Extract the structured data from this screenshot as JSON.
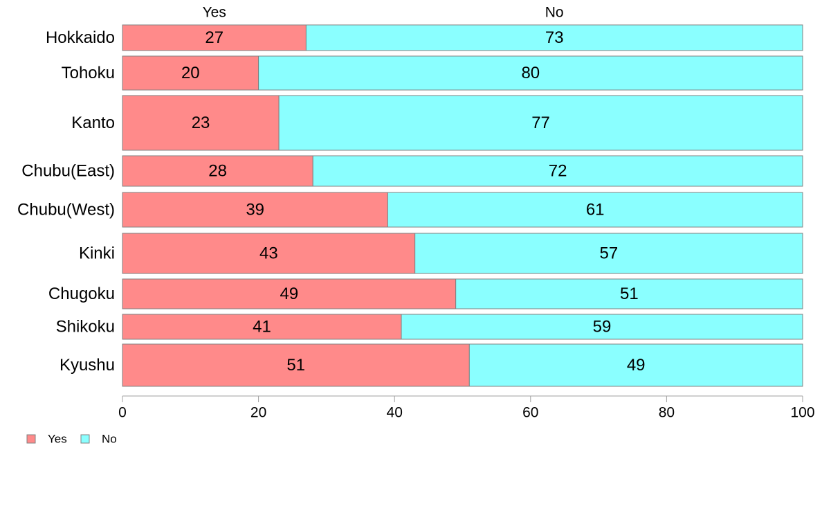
{
  "chart_data": {
    "type": "bar",
    "orientation": "horizontal",
    "stacked": true,
    "categories": [
      "Hokkaido",
      "Tohoku",
      "Kanto",
      "Chubu(East)",
      "Chubu(West)",
      "Kinki",
      "Chugoku",
      "Shikoku",
      "Kyushu"
    ],
    "series": [
      {
        "name": "Yes",
        "values": [
          27,
          20,
          23,
          28,
          39,
          43,
          49,
          41,
          51
        ],
        "color": "#ff8a8a"
      },
      {
        "name": "No",
        "values": [
          73,
          80,
          77,
          72,
          61,
          57,
          51,
          59,
          49
        ],
        "color": "#8affff"
      }
    ],
    "bar_value_labels": [
      [
        "27",
        "73"
      ],
      [
        "20",
        "80"
      ],
      [
        "23",
        "77"
      ],
      [
        "28",
        "72"
      ],
      [
        "39",
        "61"
      ],
      [
        "43",
        "57"
      ],
      [
        "49",
        "51"
      ],
      [
        "41",
        "59"
      ],
      [
        "51",
        "49"
      ]
    ],
    "xlim": [
      0,
      100
    ],
    "x_ticks": [
      0,
      20,
      40,
      60,
      80,
      100
    ],
    "x_tick_labels": [
      "0",
      "20",
      "40",
      "60",
      "80",
      "100"
    ],
    "column_headers": [
      "Yes",
      "No"
    ],
    "legend": {
      "placement": "bottom-left",
      "entries": [
        {
          "label": "Yes",
          "color": "#ff8a8a"
        },
        {
          "label": "No",
          "color": "#8affff"
        }
      ]
    },
    "grid": false,
    "border_color": "#808080",
    "axis_color": "#a0a0a0"
  }
}
